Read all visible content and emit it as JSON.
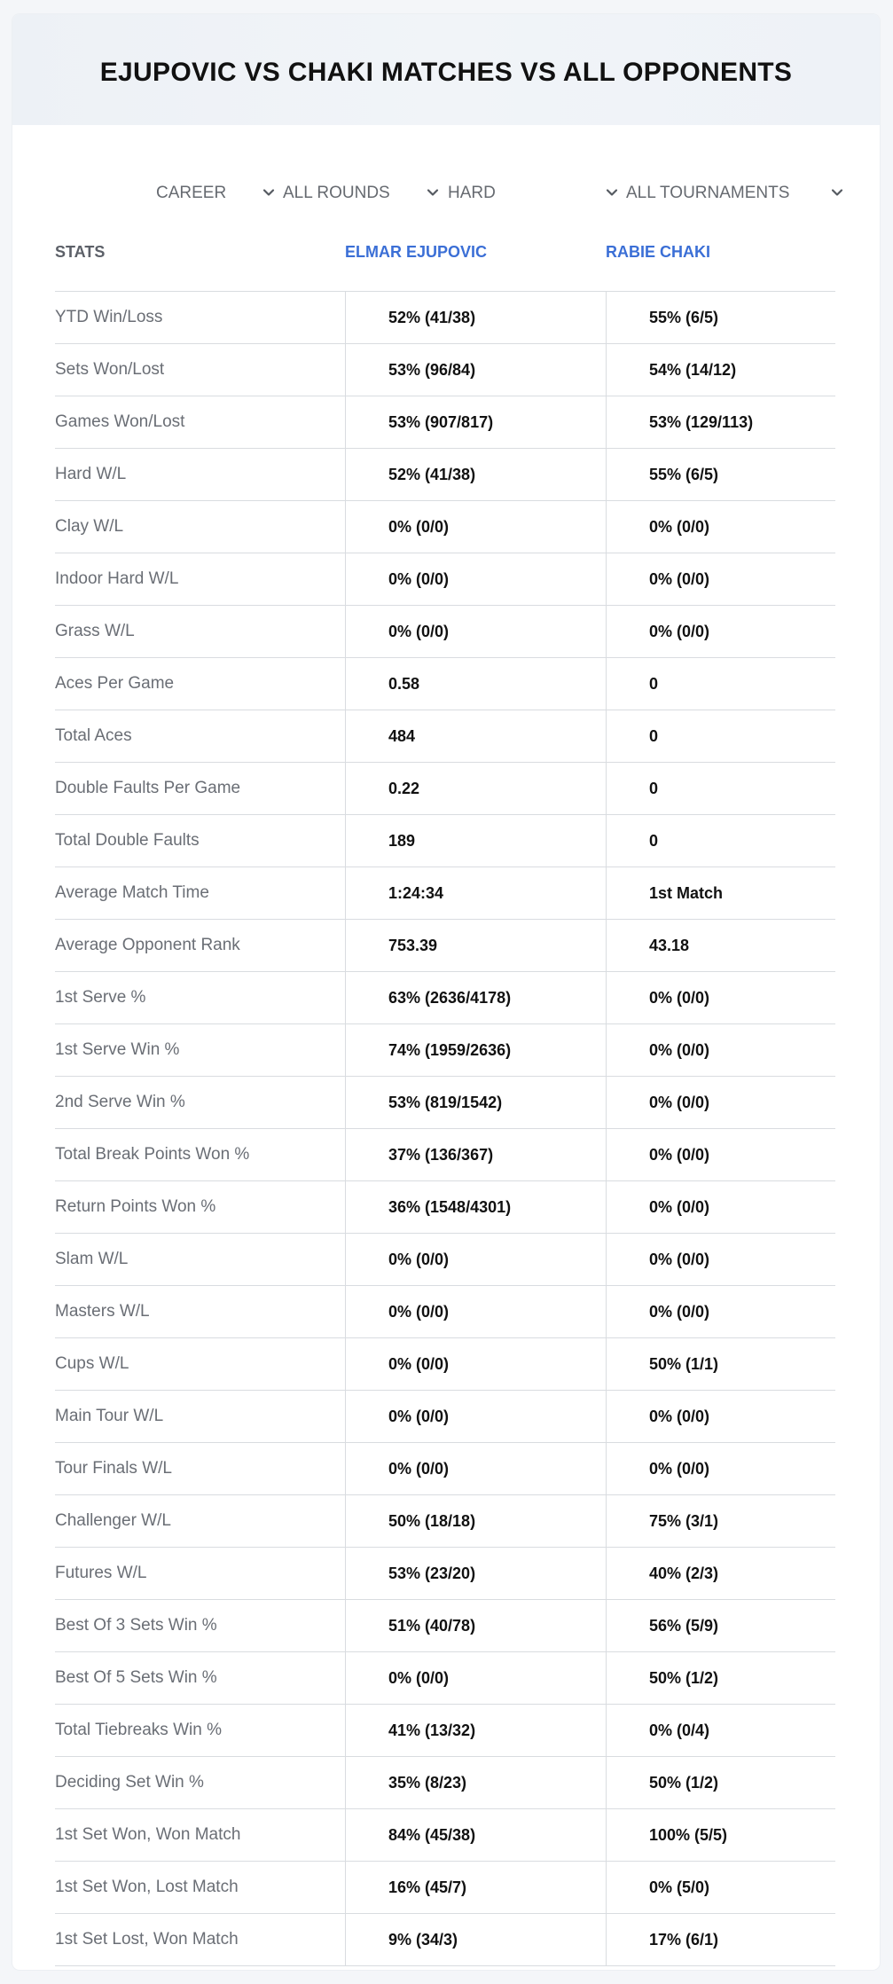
{
  "title": "EJUPOVIC VS CHAKI MATCHES VS ALL OPPONENTS",
  "filters": {
    "period": "CAREER",
    "round": "ALL ROUNDS",
    "surface": "HARD",
    "tournament": "ALL TOURNAMENTS"
  },
  "icons": {
    "dropdown": "chevron-down-icon"
  },
  "colors": {
    "player_link": "#3b6fd6",
    "header_bg": "#eef2f7"
  },
  "table": {
    "headers": {
      "stats": "STATS",
      "player1": "ELMAR EJUPOVIC",
      "player2": "RABIE CHAKI"
    },
    "rows": [
      {
        "label": "YTD Win/Loss",
        "p1": "52% (41/38)",
        "p2": "55% (6/5)"
      },
      {
        "label": "Sets Won/Lost",
        "p1": "53% (96/84)",
        "p2": "54% (14/12)"
      },
      {
        "label": "Games Won/Lost",
        "p1": "53% (907/817)",
        "p2": "53% (129/113)"
      },
      {
        "label": "Hard W/L",
        "p1": "52% (41/38)",
        "p2": "55% (6/5)"
      },
      {
        "label": "Clay W/L",
        "p1": "0% (0/0)",
        "p2": "0% (0/0)"
      },
      {
        "label": "Indoor Hard W/L",
        "p1": "0% (0/0)",
        "p2": "0% (0/0)"
      },
      {
        "label": "Grass W/L",
        "p1": "0% (0/0)",
        "p2": "0% (0/0)"
      },
      {
        "label": "Aces Per Game",
        "p1": "0.58",
        "p2": "0"
      },
      {
        "label": "Total Aces",
        "p1": "484",
        "p2": "0"
      },
      {
        "label": "Double Faults Per Game",
        "p1": "0.22",
        "p2": "0"
      },
      {
        "label": "Total Double Faults",
        "p1": "189",
        "p2": "0"
      },
      {
        "label": "Average Match Time",
        "p1": "1:24:34",
        "p2": "1st Match"
      },
      {
        "label": "Average Opponent Rank",
        "p1": "753.39",
        "p2": "43.18"
      },
      {
        "label": "1st Serve %",
        "p1": "63% (2636/4178)",
        "p2": "0% (0/0)"
      },
      {
        "label": "1st Serve Win %",
        "p1": "74% (1959/2636)",
        "p2": "0% (0/0)"
      },
      {
        "label": "2nd Serve Win %",
        "p1": "53% (819/1542)",
        "p2": "0% (0/0)"
      },
      {
        "label": "Total Break Points Won %",
        "p1": "37% (136/367)",
        "p2": "0% (0/0)"
      },
      {
        "label": "Return Points Won %",
        "p1": "36% (1548/4301)",
        "p2": "0% (0/0)"
      },
      {
        "label": "Slam W/L",
        "p1": "0% (0/0)",
        "p2": "0% (0/0)"
      },
      {
        "label": "Masters W/L",
        "p1": "0% (0/0)",
        "p2": "0% (0/0)"
      },
      {
        "label": "Cups W/L",
        "p1": "0% (0/0)",
        "p2": "50% (1/1)"
      },
      {
        "label": "Main Tour W/L",
        "p1": "0% (0/0)",
        "p2": "0% (0/0)"
      },
      {
        "label": "Tour Finals W/L",
        "p1": "0% (0/0)",
        "p2": "0% (0/0)"
      },
      {
        "label": "Challenger W/L",
        "p1": "50% (18/18)",
        "p2": "75% (3/1)"
      },
      {
        "label": "Futures W/L",
        "p1": "53% (23/20)",
        "p2": "40% (2/3)"
      },
      {
        "label": "Best Of 3 Sets Win %",
        "p1": "51% (40/78)",
        "p2": "56% (5/9)"
      },
      {
        "label": "Best Of 5 Sets Win %",
        "p1": "0% (0/0)",
        "p2": "50% (1/2)"
      },
      {
        "label": "Total Tiebreaks Win %",
        "p1": "41% (13/32)",
        "p2": "0% (0/4)"
      },
      {
        "label": "Deciding Set Win %",
        "p1": "35% (8/23)",
        "p2": "50% (1/2)"
      },
      {
        "label": "1st Set Won, Won Match",
        "p1": "84% (45/38)",
        "p2": "100% (5/5)"
      },
      {
        "label": "1st Set Won, Lost Match",
        "p1": "16% (45/7)",
        "p2": "0% (5/0)"
      },
      {
        "label": "1st Set Lost, Won Match",
        "p1": "9% (34/3)",
        "p2": "17% (6/1)"
      }
    ]
  }
}
